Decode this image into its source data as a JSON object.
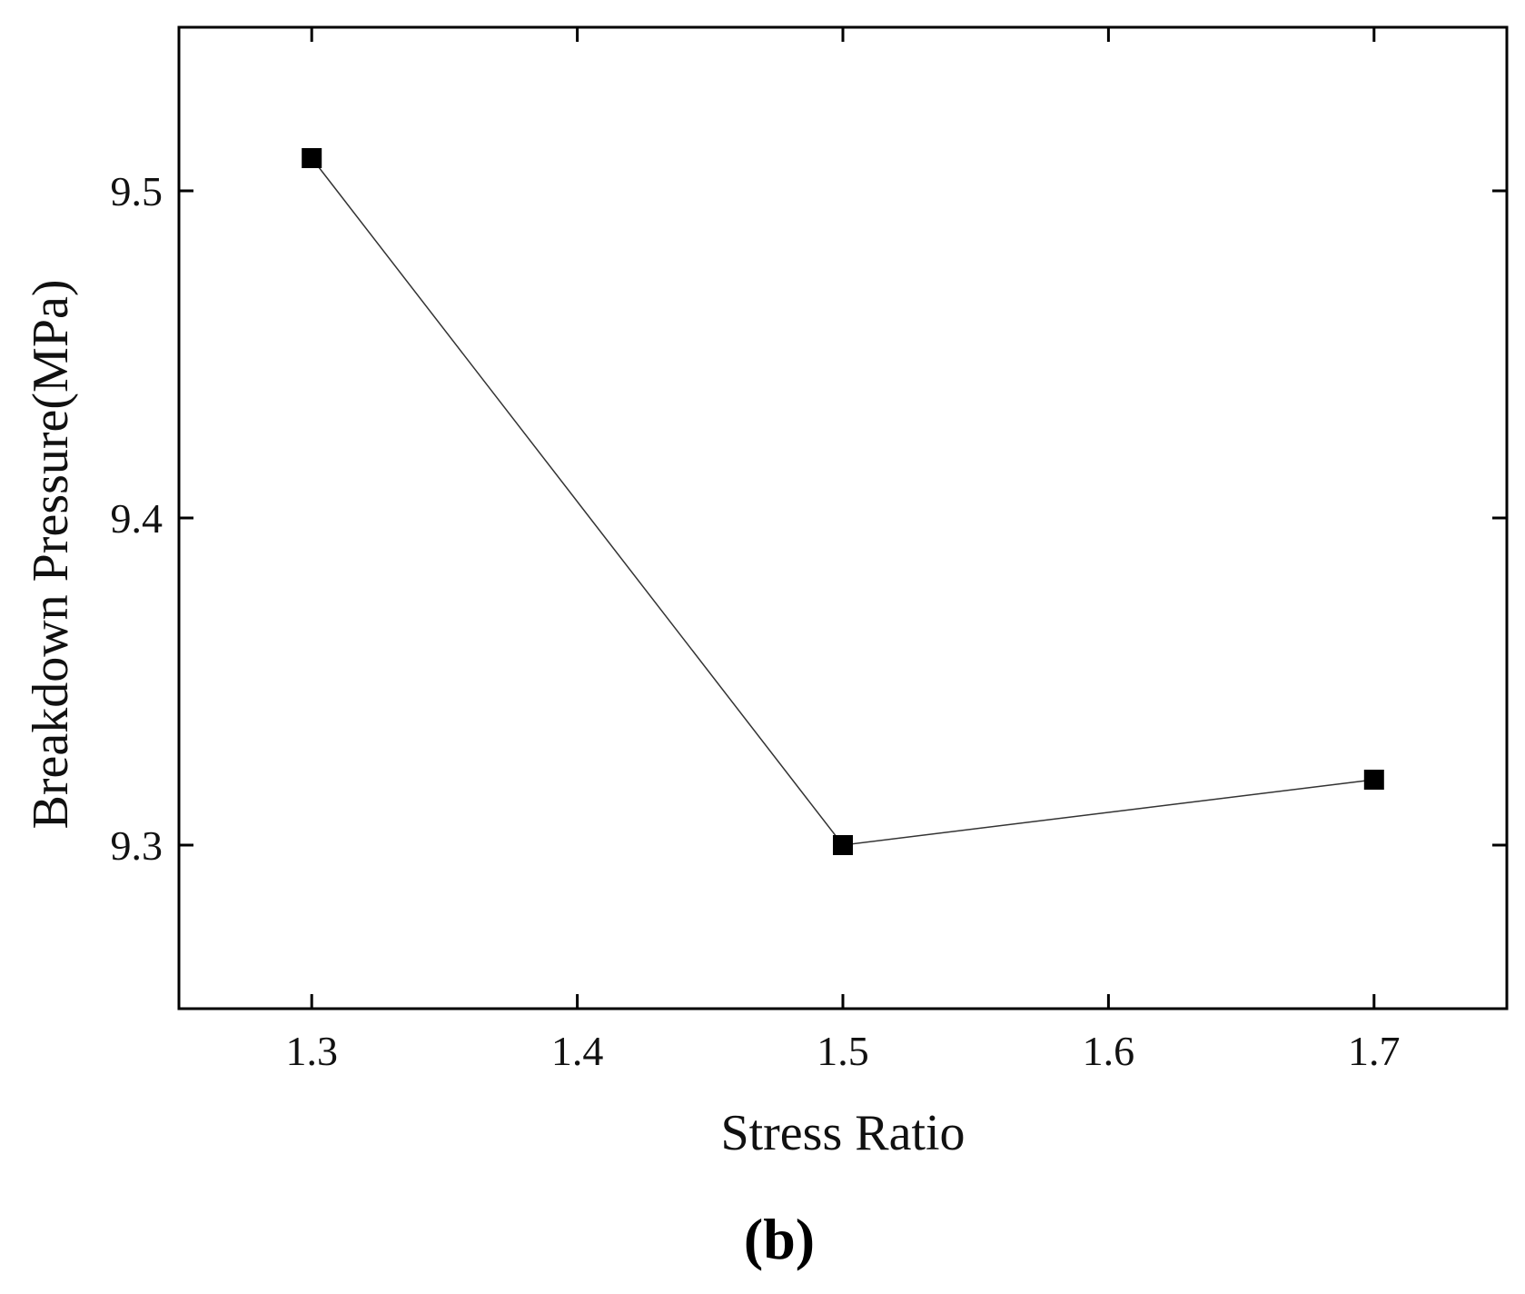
{
  "chart_data": {
    "type": "line",
    "xlabel": "Stress Ratio",
    "ylabel": "Breakdown Pressure(MPa)",
    "panel_label": "(b)",
    "xlim": [
      1.25,
      1.75
    ],
    "ylim": [
      9.25,
      9.55
    ],
    "xticks": [
      1.3,
      1.4,
      1.5,
      1.6,
      1.7
    ],
    "xtick_labels": [
      "1.3",
      "1.4",
      "1.5",
      "1.6",
      "1.7"
    ],
    "yticks": [
      9.3,
      9.4,
      9.5
    ],
    "ytick_labels": [
      "9.3",
      "9.4",
      "9.5"
    ],
    "grid": false,
    "series": [
      {
        "marker": "square",
        "color": "#000000",
        "x": [
          1.3,
          1.5,
          1.7
        ],
        "y": [
          9.51,
          9.3,
          9.32
        ]
      }
    ]
  }
}
